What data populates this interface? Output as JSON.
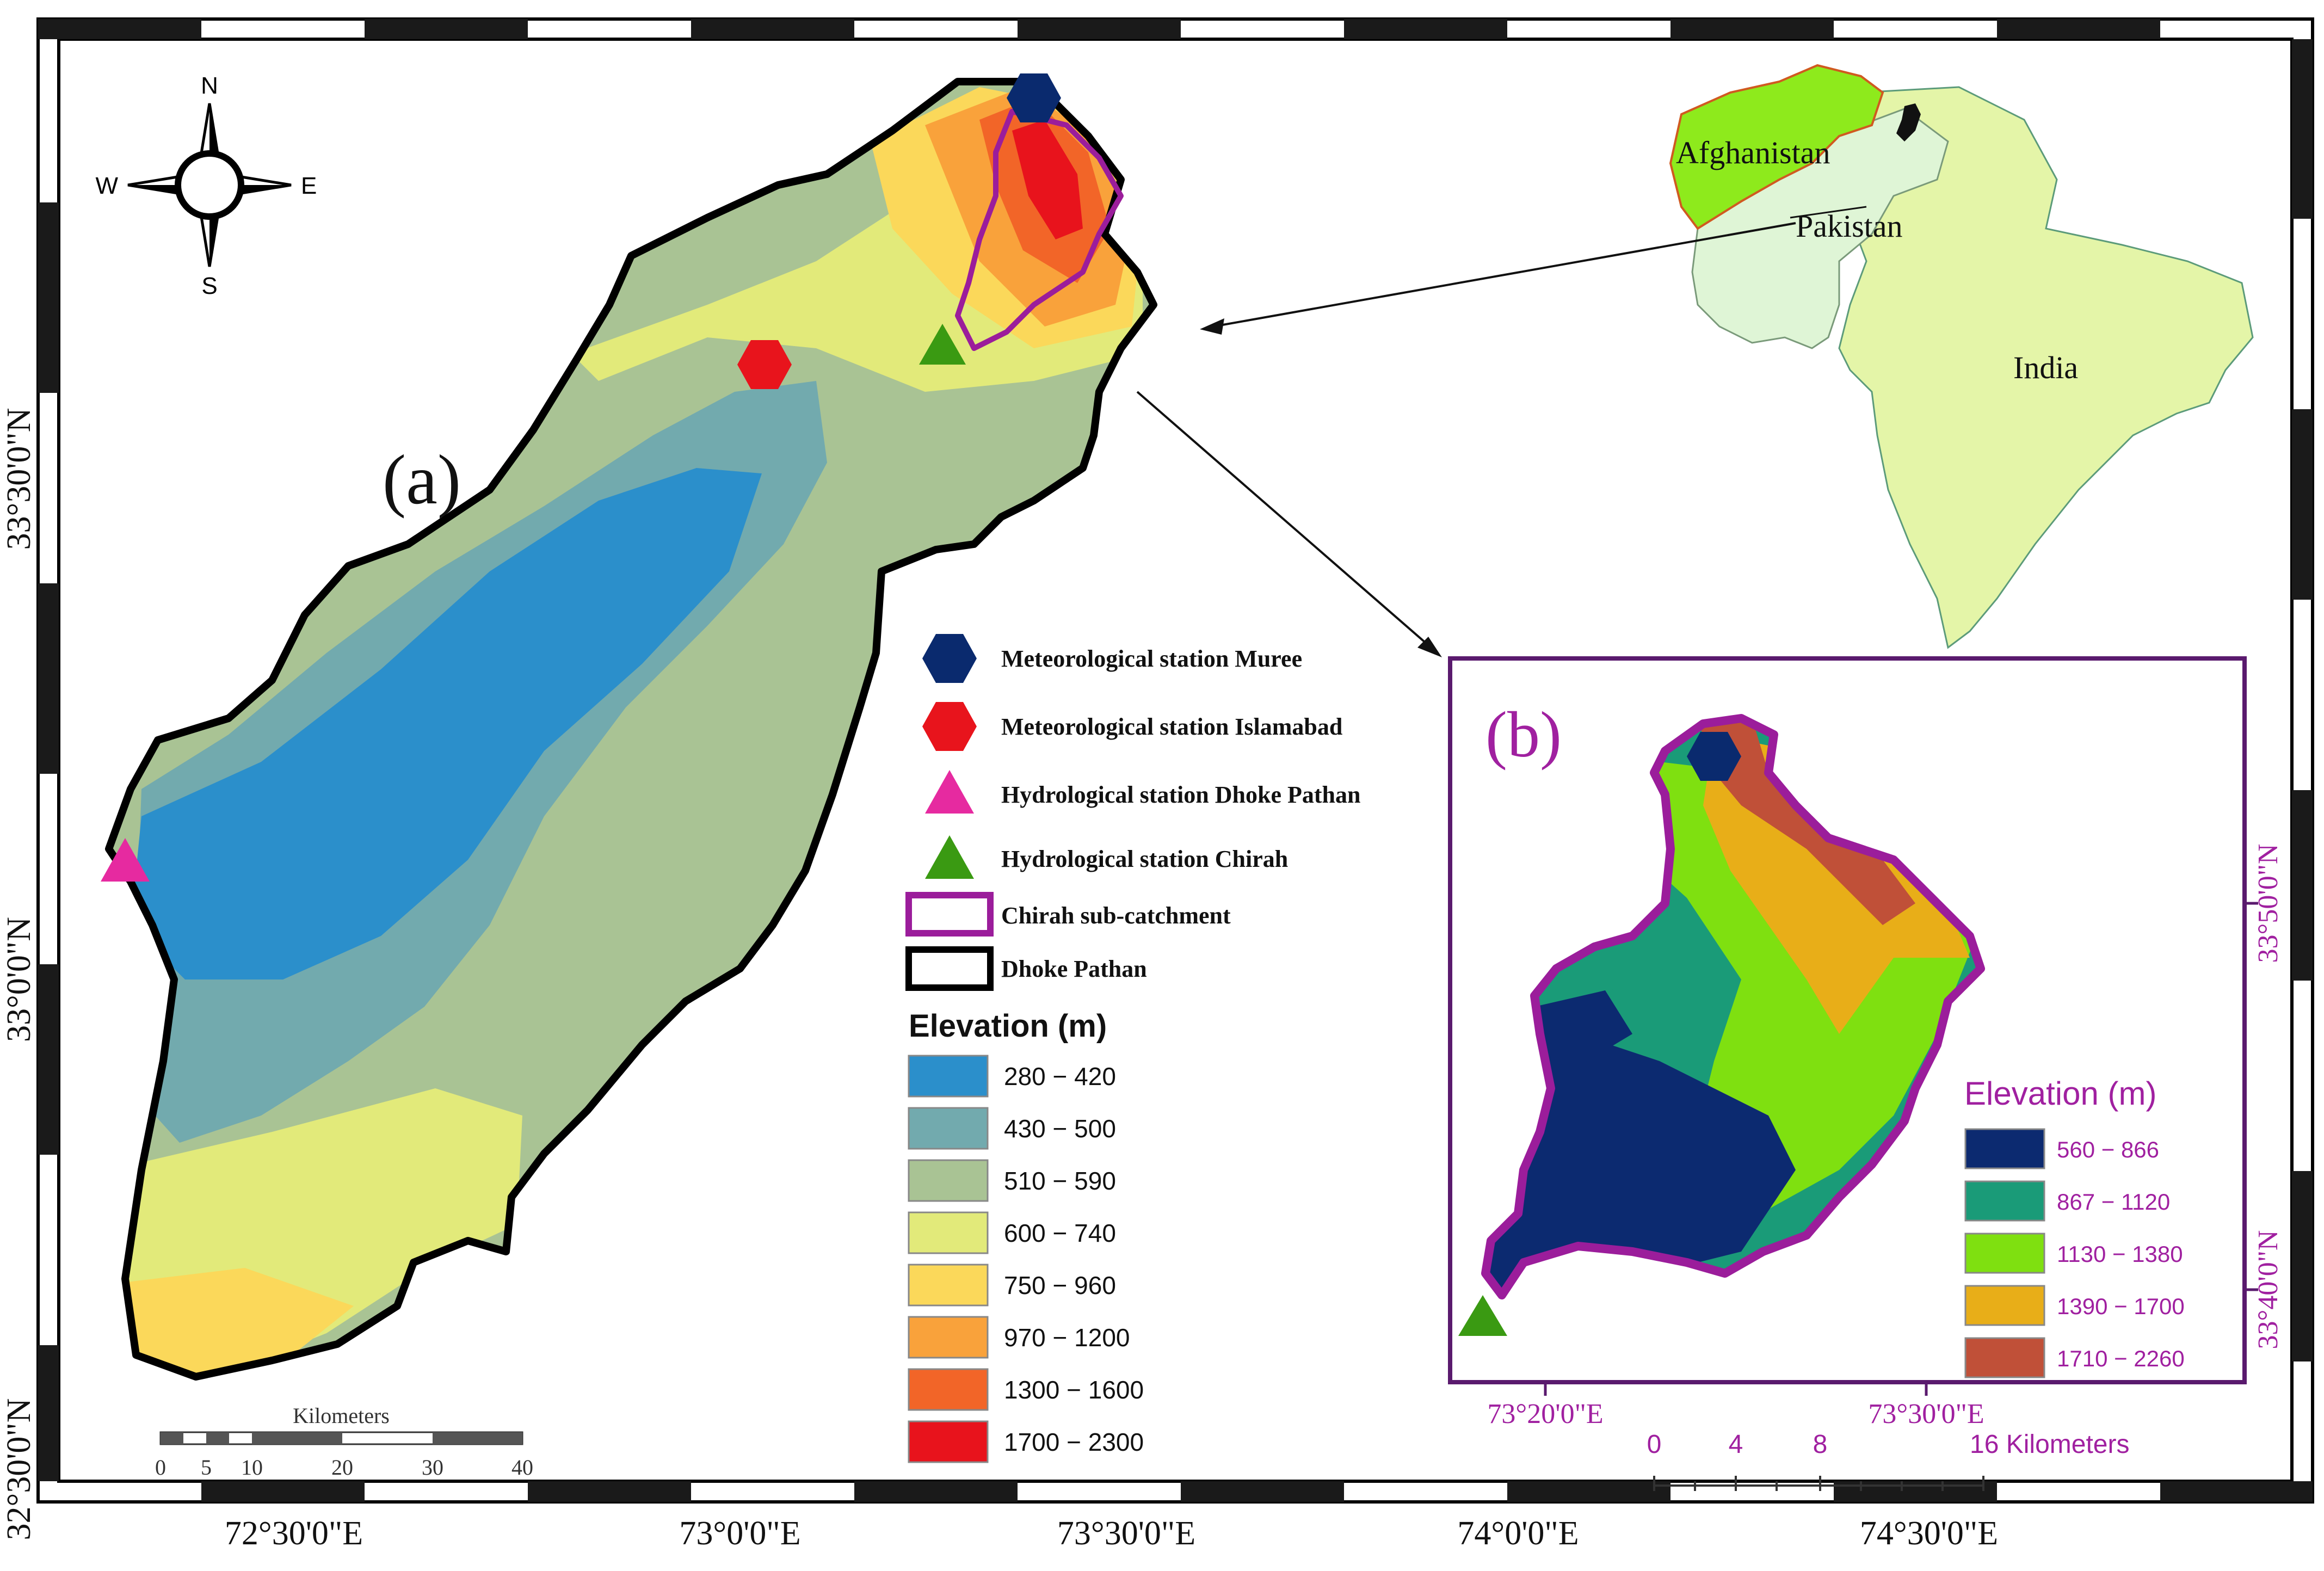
{
  "colors": {
    "frame_dark": "#000000",
    "accent_purple": "#9b1d9b",
    "inset_label": "#a020a0",
    "muree_marker": "#0a2a6e",
    "islamabad_marker": "#e8141c",
    "dhoke_marker": "#e62aa0",
    "chirah_marker": "#3a9a12"
  },
  "graticule": {
    "top_labels": [
      "72°30'0\"E",
      "73°0'0\"E",
      "73°30'0\"E",
      "74°0'0\"E",
      "74°30'0\"E"
    ],
    "left_labels": [
      "33°30'0\"N",
      "33°0'0\"N",
      "32°30'0\"N"
    ]
  },
  "north_arrow": {
    "n": "N",
    "s": "S",
    "e": "E",
    "w": "W"
  },
  "panel_a": {
    "label": "(a)",
    "scale_bar": {
      "title": "Kilometers",
      "ticks": [
        "0",
        "5",
        "10",
        "20",
        "30",
        "40"
      ]
    }
  },
  "legend": {
    "muree": "Meteorological station Muree",
    "islamabad": "Meteorological station Islamabad",
    "dhoke_pathan": "Hydrological station Dhoke Pathan",
    "chirah": "Hydrological station Chirah",
    "chirah_sub": "Chirah sub-catchment",
    "dhoke_outline": "Dhoke Pathan",
    "elevation_title": "Elevation (m)",
    "classes": [
      {
        "label": "280 − 420",
        "color": "#2b8fcb"
      },
      {
        "label": "430 − 500",
        "color": "#72aaae"
      },
      {
        "label": "510 − 590",
        "color": "#a9c394"
      },
      {
        "label": "600 − 740",
        "color": "#e2ea7a"
      },
      {
        "label": "750 − 960",
        "color": "#fbd85a"
      },
      {
        "label": "970 − 1200",
        "color": "#f9a23b"
      },
      {
        "label": "1300 − 1600",
        "color": "#f26528"
      },
      {
        "label": "1700 − 2300",
        "color": "#e8131c"
      }
    ]
  },
  "inset_map": {
    "afghanistan": "Afghanistan",
    "pakistan": "Pakistan",
    "india": "India"
  },
  "panel_b": {
    "label": "(b)",
    "x_labels": [
      "73°20'0\"E",
      "73°30'0\"E"
    ],
    "y_labels": [
      "33°50'0\"N",
      "33°40'0\"N"
    ],
    "elevation_title": "Elevation (m)",
    "classes": [
      {
        "label": "560 − 866",
        "color": "#0c2a70"
      },
      {
        "label": "867 − 1120",
        "color": "#1a9b78"
      },
      {
        "label": "1130 − 1380",
        "color": "#7fe010"
      },
      {
        "label": "1390 − 1700",
        "color": "#e8ae18"
      },
      {
        "label": "1710 − 2260",
        "color": "#c05038"
      }
    ],
    "scale": {
      "ticks": [
        "0",
        "4",
        "8",
        "16 Kilometers"
      ]
    }
  }
}
